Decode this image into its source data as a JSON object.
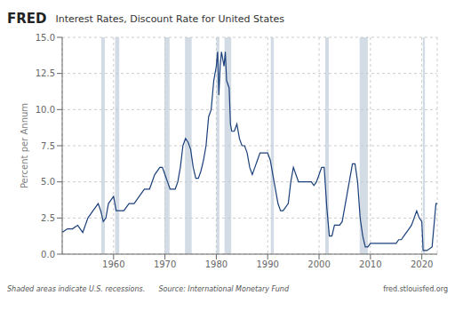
{
  "chart_data": {
    "type": "line",
    "title": "Interest Rates, Discount Rate for United States",
    "y_label": "Percent per Annum",
    "color": "#1a3f7a",
    "grid": true,
    "xlim": [
      1950,
      2023
    ],
    "xticks": [
      1960,
      1970,
      1980,
      1990,
      2000,
      2010,
      2020
    ],
    "ylim": [
      0.0,
      15.0
    ],
    "yticks": [
      {
        "value": 0.0,
        "label": "0.0"
      },
      2.5,
      {
        "value": 5.0,
        "label": "5.0"
      },
      7.5,
      {
        "value": 10.0,
        "label": "10.0"
      },
      12.5,
      {
        "value": 15.0,
        "label": "15.0"
      }
    ],
    "annotations": [
      "FRED",
      "Shaded areas indicate U.S. recessions.      Source: International Monetary Fund",
      "fred.stlouisfed.org"
    ],
    "shaded_ranges": [
      [
        1957.6,
        1958.3
      ],
      [
        1960.3,
        1961.1
      ],
      [
        1969.9,
        1970.9
      ],
      [
        1973.9,
        1975.2
      ],
      [
        1980.0,
        1980.6
      ],
      [
        1981.6,
        1982.9
      ],
      [
        1990.6,
        1991.2
      ],
      [
        2001.2,
        2001.9
      ],
      [
        2007.9,
        2009.5
      ],
      [
        2020.2,
        2020.6
      ]
    ],
    "x": [
      1950.0,
      1951.0,
      1952.0,
      1953.0,
      1954.0,
      1955.0,
      1956.0,
      1957.0,
      1957.5,
      1958.0,
      1958.5,
      1959.0,
      1960.0,
      1960.5,
      1961.0,
      1962.0,
      1963.0,
      1964.0,
      1965.0,
      1966.0,
      1967.0,
      1968.0,
      1969.0,
      1969.5,
      1970.0,
      1970.5,
      1971.0,
      1972.0,
      1972.5,
      1973.0,
      1973.5,
      1974.0,
      1974.5,
      1975.0,
      1975.5,
      1976.0,
      1976.5,
      1977.0,
      1977.5,
      1978.0,
      1978.5,
      1979.0,
      1979.5,
      1980.0,
      1980.25,
      1980.5,
      1980.75,
      1981.0,
      1981.5,
      1981.75,
      1982.0,
      1982.5,
      1982.75,
      1983.0,
      1983.5,
      1984.0,
      1984.5,
      1985.0,
      1985.5,
      1986.0,
      1986.5,
      1987.0,
      1987.5,
      1988.0,
      1988.5,
      1989.0,
      1989.5,
      1990.0,
      1990.5,
      1991.0,
      1991.5,
      1992.0,
      1992.5,
      1993.0,
      1994.0,
      1994.5,
      1995.0,
      1995.5,
      1996.0,
      1997.0,
      1998.0,
      1998.5,
      1999.0,
      1999.5,
      2000.0,
      2000.5,
      2001.0,
      2001.5,
      2002.0,
      2002.5,
      2003.0,
      2004.0,
      2004.5,
      2005.0,
      2005.5,
      2006.0,
      2006.5,
      2007.0,
      2007.5,
      2008.0,
      2008.5,
      2009.0,
      2009.5,
      2010.0,
      2011.0,
      2012.0,
      2013.0,
      2014.0,
      2015.0,
      2015.5,
      2016.0,
      2016.5,
      2017.0,
      2017.5,
      2018.0,
      2018.5,
      2019.0,
      2019.5,
      2020.0,
      2020.25,
      2020.5,
      2021.0,
      2022.0,
      2022.5,
      2022.75,
      2023.0
    ],
    "values": [
      1.5,
      1.75,
      1.75,
      2.0,
      1.5,
      2.5,
      3.0,
      3.5,
      3.0,
      2.25,
      2.5,
      3.5,
      4.0,
      3.0,
      3.0,
      3.0,
      3.5,
      3.5,
      4.0,
      4.5,
      4.5,
      5.5,
      6.0,
      6.0,
      5.5,
      5.0,
      4.5,
      4.5,
      5.0,
      6.0,
      7.5,
      8.0,
      7.75,
      7.25,
      6.0,
      5.25,
      5.25,
      5.75,
      6.5,
      7.5,
      9.5,
      10.0,
      12.0,
      13.0,
      14.0,
      11.0,
      13.0,
      14.0,
      13.0,
      14.0,
      12.0,
      11.5,
      9.0,
      8.5,
      8.5,
      9.0,
      8.0,
      7.5,
      7.5,
      7.0,
      6.0,
      5.5,
      6.0,
      6.5,
      7.0,
      7.0,
      7.0,
      7.0,
      6.5,
      5.5,
      4.5,
      3.5,
      3.0,
      3.0,
      3.5,
      5.0,
      6.0,
      5.5,
      5.0,
      5.0,
      5.0,
      5.0,
      4.75,
      5.0,
      5.5,
      6.0,
      6.0,
      3.25,
      1.25,
      1.25,
      2.0,
      2.0,
      2.25,
      3.25,
      4.25,
      5.25,
      6.25,
      6.25,
      5.0,
      2.5,
      1.25,
      0.5,
      0.5,
      0.75,
      0.75,
      0.75,
      0.75,
      0.75,
      0.75,
      1.0,
      1.0,
      1.25,
      1.5,
      1.75,
      2.0,
      2.5,
      3.0,
      2.5,
      2.25,
      0.25,
      0.25,
      0.25,
      0.5,
      2.5,
      3.5,
      3.5
    ]
  }
}
